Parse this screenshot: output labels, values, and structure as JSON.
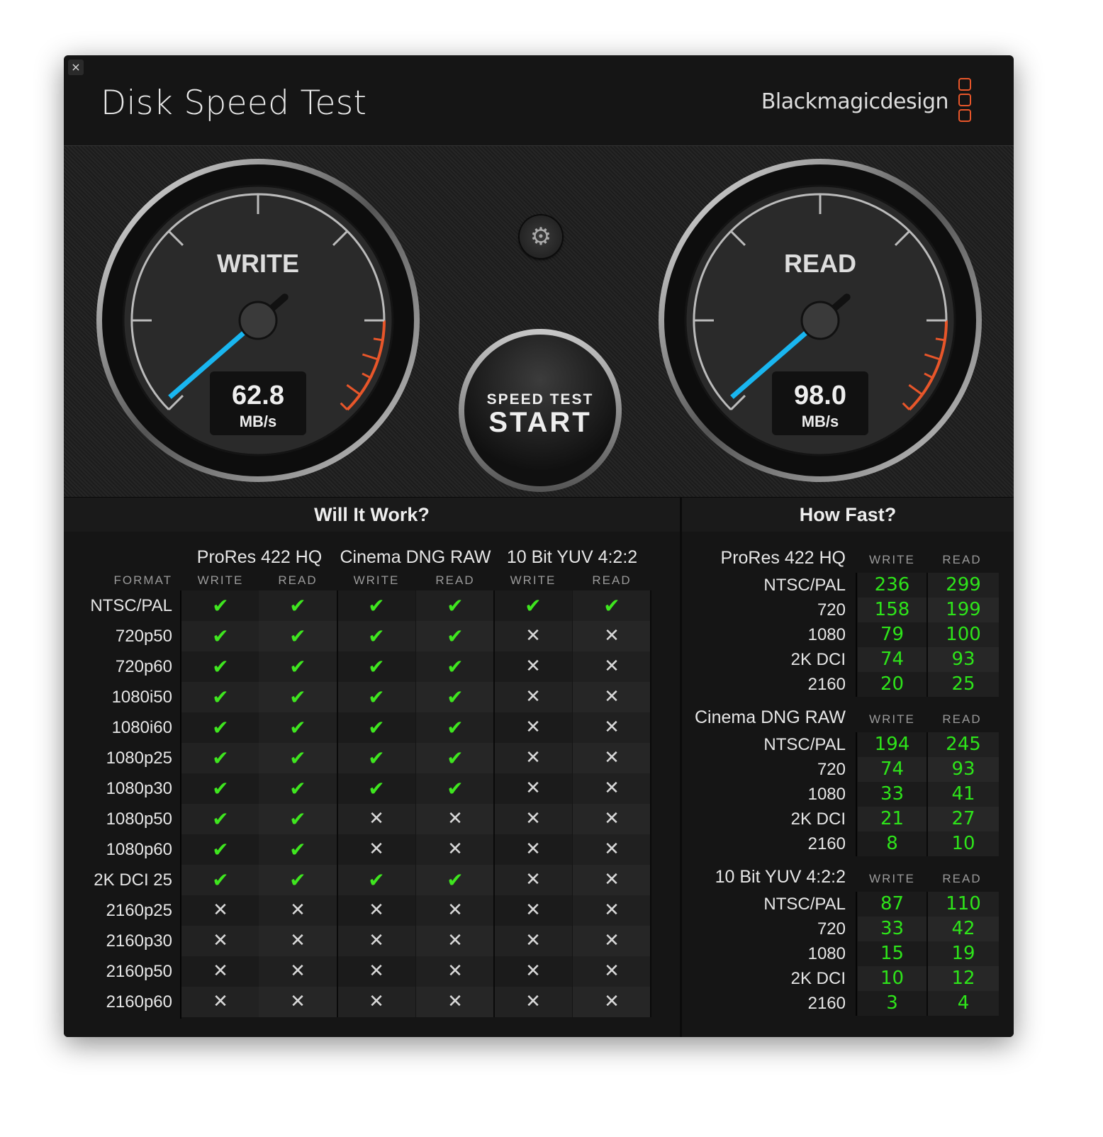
{
  "window": {
    "title": "Disk Speed Test",
    "brand": "Blackmagicdesign",
    "close_label": "×"
  },
  "colors": {
    "accent_needle": "#19b6f0",
    "redline": "#e8562a",
    "ok": "#3fe61f",
    "logo": "#e8562a"
  },
  "gauges": {
    "write": {
      "label": "WRITE",
      "value": "62.8",
      "unit": "MB/s"
    },
    "read": {
      "label": "READ",
      "value": "98.0",
      "unit": "MB/s"
    }
  },
  "settings_icon": "gear-icon",
  "start_button": {
    "line1": "SPEED TEST",
    "line2": "START"
  },
  "will_it_work": {
    "title": "Will It Work?",
    "format_header": "FORMAT",
    "codecs": [
      "ProRes 422 HQ",
      "Cinema DNG RAW",
      "10 Bit YUV 4:2:2"
    ],
    "subheaders": [
      "WRITE",
      "READ",
      "WRITE",
      "READ",
      "WRITE",
      "READ"
    ],
    "rows": [
      {
        "format": "NTSC/PAL",
        "ok": [
          true,
          true,
          true,
          true,
          true,
          true
        ]
      },
      {
        "format": "720p50",
        "ok": [
          true,
          true,
          true,
          true,
          false,
          false
        ]
      },
      {
        "format": "720p60",
        "ok": [
          true,
          true,
          true,
          true,
          false,
          false
        ]
      },
      {
        "format": "1080i50",
        "ok": [
          true,
          true,
          true,
          true,
          false,
          false
        ]
      },
      {
        "format": "1080i60",
        "ok": [
          true,
          true,
          true,
          true,
          false,
          false
        ]
      },
      {
        "format": "1080p25",
        "ok": [
          true,
          true,
          true,
          true,
          false,
          false
        ]
      },
      {
        "format": "1080p30",
        "ok": [
          true,
          true,
          true,
          true,
          false,
          false
        ]
      },
      {
        "format": "1080p50",
        "ok": [
          true,
          true,
          false,
          false,
          false,
          false
        ]
      },
      {
        "format": "1080p60",
        "ok": [
          true,
          true,
          false,
          false,
          false,
          false
        ]
      },
      {
        "format": "2K DCI 25",
        "ok": [
          true,
          true,
          true,
          true,
          false,
          false
        ]
      },
      {
        "format": "2160p25",
        "ok": [
          false,
          false,
          false,
          false,
          false,
          false
        ]
      },
      {
        "format": "2160p30",
        "ok": [
          false,
          false,
          false,
          false,
          false,
          false
        ]
      },
      {
        "format": "2160p50",
        "ok": [
          false,
          false,
          false,
          false,
          false,
          false
        ]
      },
      {
        "format": "2160p60",
        "ok": [
          false,
          false,
          false,
          false,
          false,
          false
        ]
      }
    ]
  },
  "how_fast": {
    "title": "How Fast?",
    "groups": [
      {
        "codec": "ProRes 422 HQ",
        "write_header": "WRITE",
        "read_header": "READ",
        "rows": [
          [
            "NTSC/PAL",
            "236",
            "299"
          ],
          [
            "720",
            "158",
            "199"
          ],
          [
            "1080",
            "79",
            "100"
          ],
          [
            "2K DCI",
            "74",
            "93"
          ],
          [
            "2160",
            "20",
            "25"
          ]
        ]
      },
      {
        "codec": "Cinema DNG RAW",
        "write_header": "WRITE",
        "read_header": "READ",
        "rows": [
          [
            "NTSC/PAL",
            "194",
            "245"
          ],
          [
            "720",
            "74",
            "93"
          ],
          [
            "1080",
            "33",
            "41"
          ],
          [
            "2K DCI",
            "21",
            "27"
          ],
          [
            "2160",
            "8",
            "10"
          ]
        ]
      },
      {
        "codec": "10 Bit YUV 4:2:2",
        "write_header": "WRITE",
        "read_header": "READ",
        "rows": [
          [
            "NTSC/PAL",
            "87",
            "110"
          ],
          [
            "720",
            "33",
            "42"
          ],
          [
            "1080",
            "15",
            "19"
          ],
          [
            "2K DCI",
            "10",
            "12"
          ],
          [
            "2160",
            "3",
            "4"
          ]
        ]
      }
    ]
  }
}
